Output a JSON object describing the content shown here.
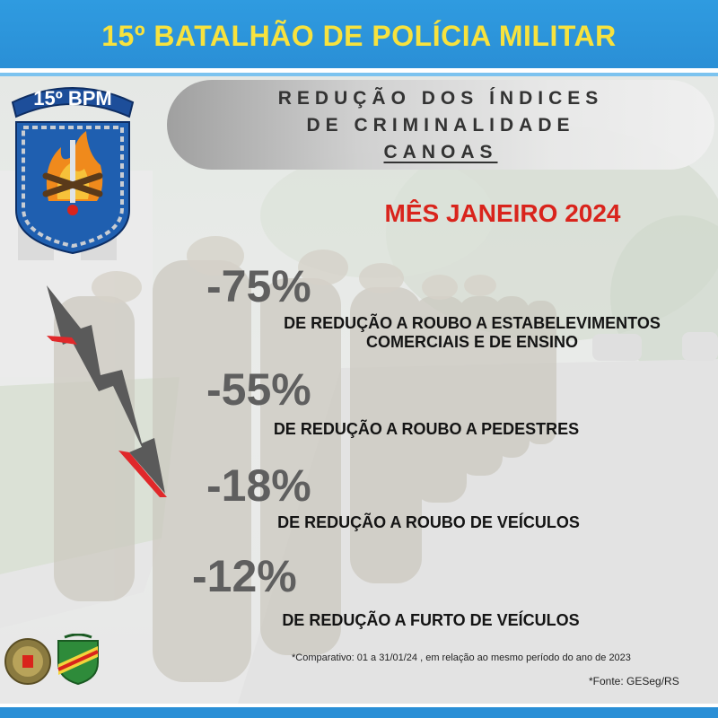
{
  "header": {
    "title": "15º BATALHÃO DE POLÍCIA MILITAR"
  },
  "badge": {
    "text": "15º BPM"
  },
  "panel": {
    "line1": "REDUÇÃO DOS ÍNDICES",
    "line2": "DE CRIMINALIDADE",
    "line3": "CANOAS"
  },
  "month": "MÊS JANEIRO 2024",
  "stats": [
    {
      "value": "-75%",
      "desc1": "DE REDUÇÃO A ROUBO A ESTABELEVIMENTOS",
      "desc2": "COMERCIAIS E DE ENSINO"
    },
    {
      "value": "-55%",
      "desc1": "DE REDUÇÃO A ROUBO A PEDESTRES"
    },
    {
      "value": "-18%",
      "desc1": "DE REDUÇÃO A ROUBO DE VEÍCULOS"
    },
    {
      "value": "-12%",
      "desc1": "DE REDUÇÃO A FURTO DE VEÍCULOS"
    }
  ],
  "footnote": "*Comparativo: 01 a 31/01/24 , em relação ao mesmo período do ano de 2023",
  "source": "*Fonte: GESeg/RS",
  "colors": {
    "header_bg": "#2a8fd6",
    "header_text": "#f7e23e",
    "month": "#d9241c",
    "percent": "#5f5f5f",
    "arrow_accent": "#e0282a"
  },
  "icons": [
    "badge-emblem",
    "down-arrow-icon",
    "brigada-seal-icon",
    "regional-shield-icon"
  ]
}
